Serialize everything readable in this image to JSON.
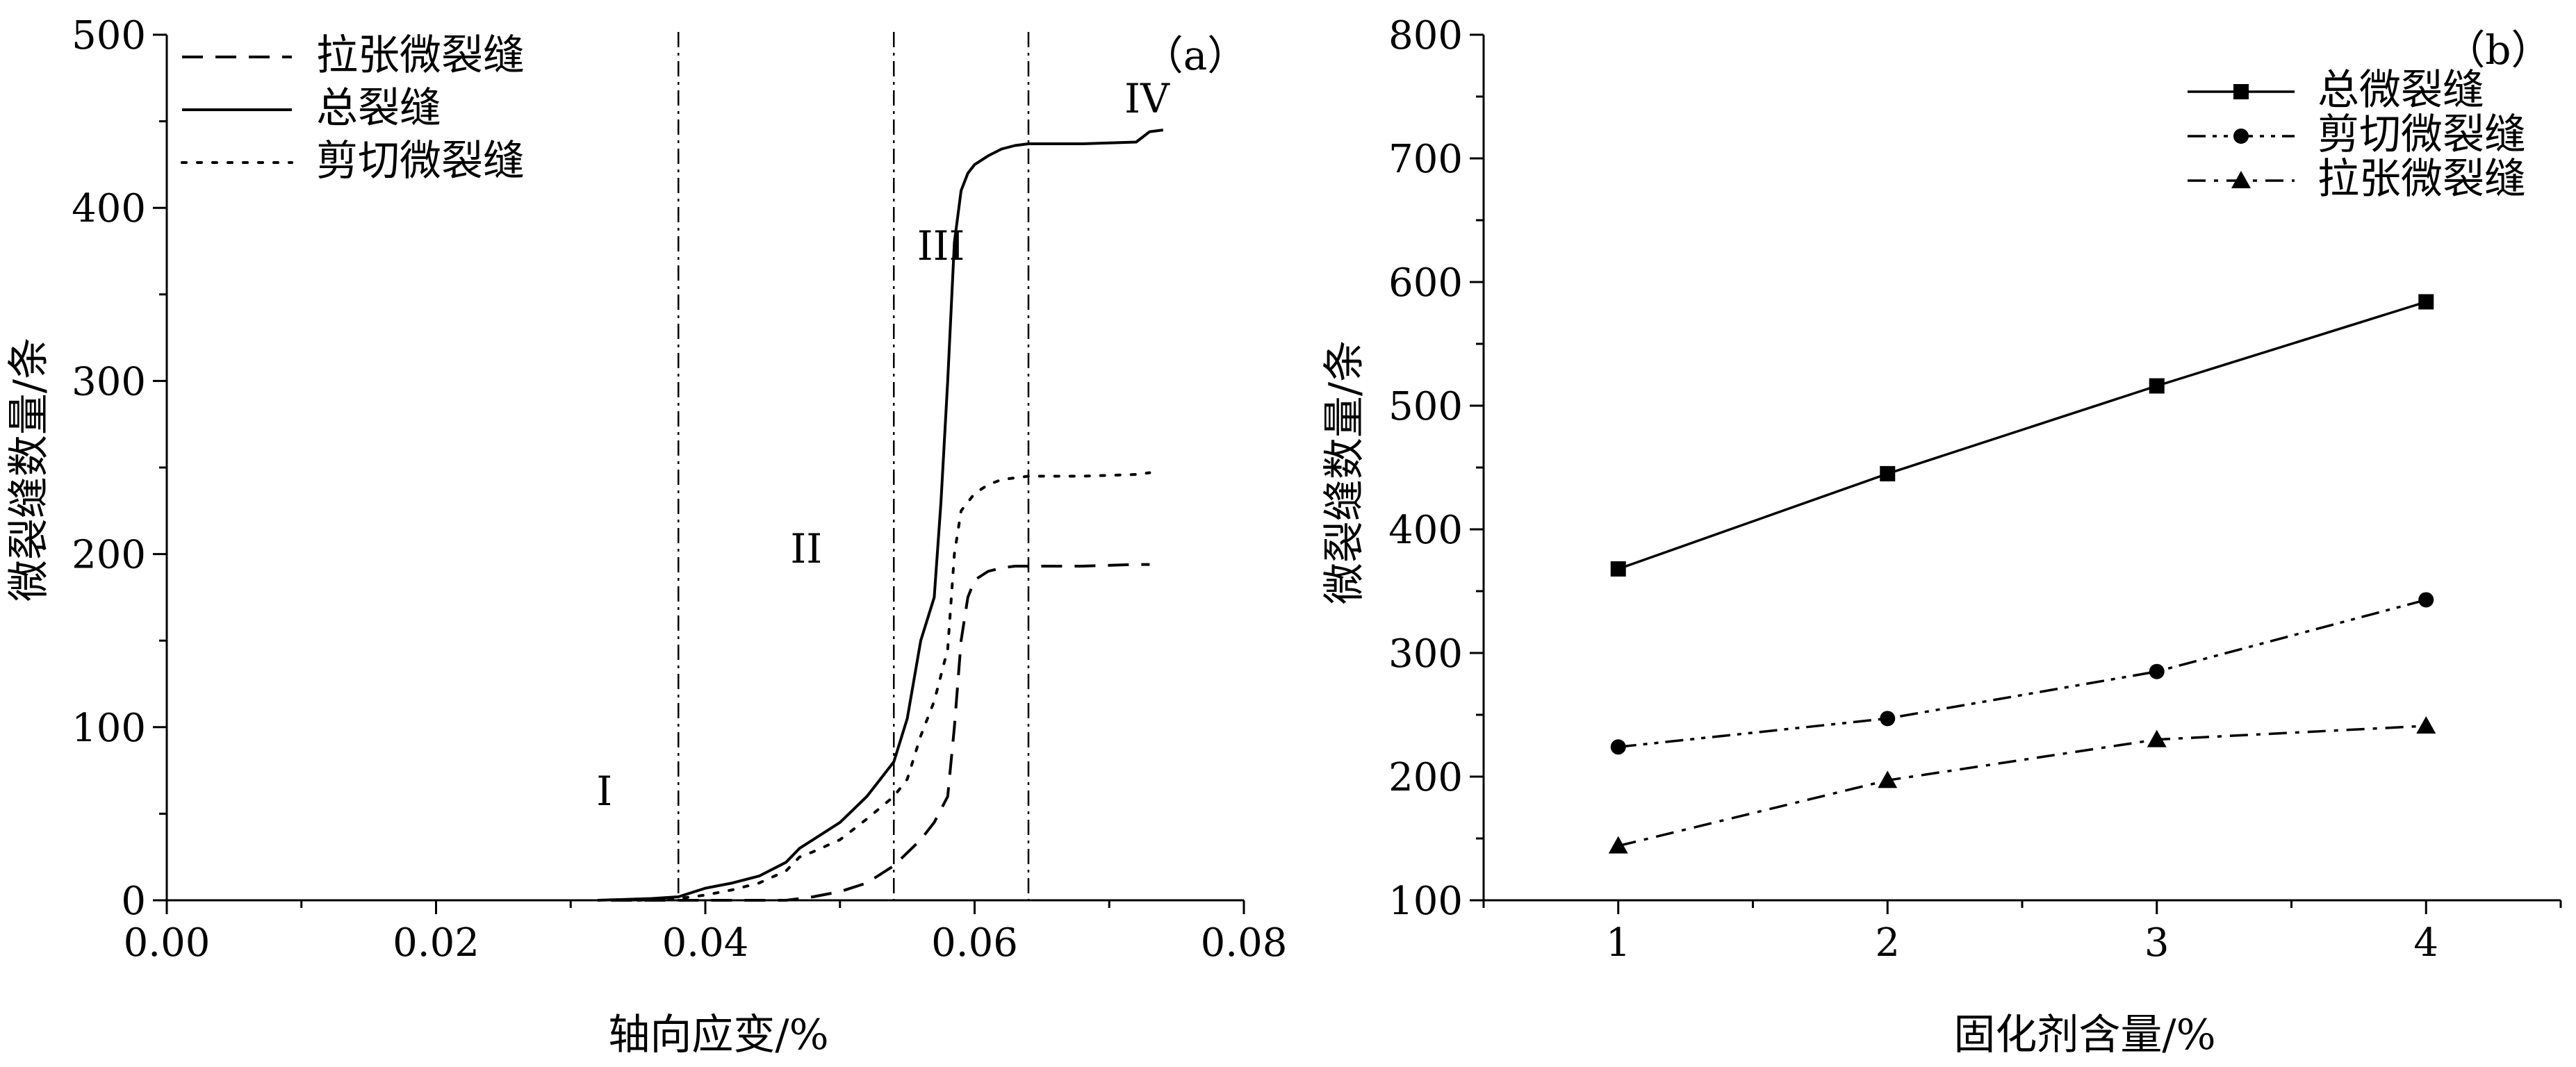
{
  "chart_data": [
    {
      "type": "line",
      "panel_label": "（a）",
      "xlabel": "轴向应变/%",
      "ylabel": "微裂缝数量/条",
      "xlim": [
        0,
        0.08
      ],
      "ylim": [
        0,
        500
      ],
      "xticks": [
        0.0,
        0.02,
        0.04,
        0.06,
        0.08
      ],
      "xtick_labels": [
        "0.00",
        "0.02",
        "0.04",
        "0.06",
        "0.08"
      ],
      "yticks": [
        0,
        100,
        200,
        300,
        400,
        500
      ],
      "ytick_labels": [
        "0",
        "100",
        "200",
        "300",
        "400",
        "500"
      ],
      "legend_position": "top-left",
      "stage_dividers": [
        0.038,
        0.054,
        0.064
      ],
      "stage_labels": [
        {
          "text": "I",
          "x": 0.0325,
          "y": 55
        },
        {
          "text": "II",
          "x": 0.0475,
          "y": 195
        },
        {
          "text": "III",
          "x": 0.0575,
          "y": 370
        },
        {
          "text": "IV",
          "x": 0.0728,
          "y": 455
        }
      ],
      "series": [
        {
          "name": "拉张微裂缝",
          "style": "dashed",
          "x": [
            0.033,
            0.038,
            0.04,
            0.042,
            0.044,
            0.046,
            0.048,
            0.05,
            0.052,
            0.054,
            0.056,
            0.057,
            0.058,
            0.0585,
            0.059,
            0.0595,
            0.06,
            0.061,
            0.062,
            0.063,
            0.064,
            0.068,
            0.072,
            0.073
          ],
          "values": [
            0,
            0,
            0,
            0,
            0,
            0,
            2,
            5,
            10,
            20,
            35,
            45,
            60,
            100,
            150,
            175,
            185,
            190,
            192,
            193,
            193,
            193,
            194,
            194
          ]
        },
        {
          "name": "总裂缝",
          "style": "solid",
          "x": [
            0.032,
            0.036,
            0.038,
            0.04,
            0.042,
            0.044,
            0.046,
            0.047,
            0.048,
            0.05,
            0.052,
            0.053,
            0.054,
            0.055,
            0.056,
            0.057,
            0.0575,
            0.058,
            0.0585,
            0.059,
            0.0595,
            0.06,
            0.061,
            0.062,
            0.063,
            0.064,
            0.068,
            0.072,
            0.073,
            0.074
          ],
          "values": [
            0,
            1,
            2,
            7,
            10,
            14,
            22,
            30,
            35,
            45,
            60,
            70,
            80,
            105,
            150,
            175,
            230,
            300,
            380,
            410,
            420,
            425,
            430,
            434,
            436,
            437,
            437,
            438,
            444,
            445
          ]
        },
        {
          "name": "剪切微裂缝",
          "style": "dotted",
          "x": [
            0.035,
            0.038,
            0.04,
            0.042,
            0.044,
            0.046,
            0.047,
            0.048,
            0.05,
            0.052,
            0.054,
            0.055,
            0.056,
            0.057,
            0.058,
            0.0585,
            0.059,
            0.06,
            0.061,
            0.062,
            0.064,
            0.068,
            0.072,
            0.073
          ],
          "values": [
            0,
            1,
            3,
            6,
            10,
            17,
            25,
            28,
            35,
            47,
            60,
            70,
            95,
            115,
            145,
            200,
            225,
            235,
            240,
            243,
            245,
            245,
            246,
            247
          ]
        }
      ]
    },
    {
      "type": "line",
      "panel_label": "（b）",
      "xlabel": "固化剂含量/%",
      "ylabel": "微裂缝数量/条",
      "xlim": [
        0.5,
        4.5
      ],
      "ylim": [
        100,
        800
      ],
      "xticks": [
        1,
        2,
        3,
        4
      ],
      "xtick_labels": [
        "1",
        "2",
        "3",
        "4"
      ],
      "yticks": [
        100,
        200,
        300,
        400,
        500,
        600,
        700,
        800
      ],
      "ytick_labels": [
        "100",
        "200",
        "300",
        "400",
        "500",
        "600",
        "700",
        "800"
      ],
      "legend_position": "top-right",
      "categories": [
        1,
        2,
        3,
        4
      ],
      "series": [
        {
          "name": "总微裂缝",
          "style": "solid",
          "marker": "square",
          "values": [
            368,
            445,
            516,
            584
          ]
        },
        {
          "name": "剪切微裂缝",
          "style": "dash-dot-dot",
          "marker": "circle",
          "values": [
            224,
            247,
            285,
            343
          ]
        },
        {
          "name": "拉张微裂缝",
          "style": "dash-dot",
          "marker": "triangle",
          "values": [
            144,
            197,
            230,
            241
          ]
        }
      ]
    }
  ]
}
